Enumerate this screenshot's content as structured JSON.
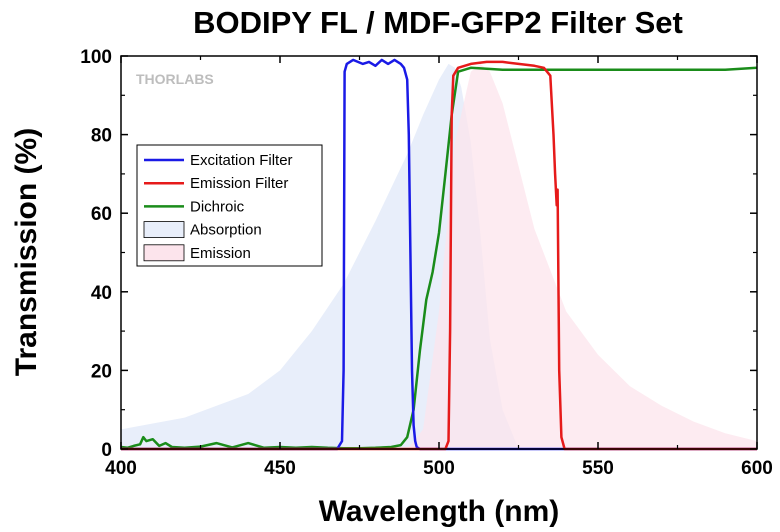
{
  "chart_data": {
    "type": "line",
    "title": "BODIPY FL / MDF-GFP2 Filter Set",
    "xlabel": "Wavelength (nm)",
    "ylabel": "Transmission (%)",
    "xlim": [
      400,
      600
    ],
    "ylim": [
      0,
      100
    ],
    "xticks": [
      "400",
      "450",
      "500",
      "550",
      "600"
    ],
    "yticks": [
      "0",
      "20",
      "40",
      "60",
      "80",
      "100"
    ],
    "watermark": "THORLABS",
    "legend_position": "upper-left",
    "series": [
      {
        "name": "Excitation Filter",
        "kind": "line",
        "color": "#1a1ae6",
        "x": [
          400,
          468,
          469.5,
          470,
          470.3,
          471,
          473,
          476,
          478,
          480,
          482,
          484,
          486,
          488,
          489,
          490,
          490.5,
          491,
          491.5,
          492,
          492.5,
          493,
          494,
          600
        ],
        "y": [
          0,
          0,
          2,
          20,
          96,
          98,
          99,
          98,
          98.5,
          97.5,
          99,
          98,
          99,
          98,
          97,
          94,
          80,
          50,
          20,
          6,
          2,
          0.5,
          0,
          0
        ]
      },
      {
        "name": "Emission Filter",
        "kind": "line",
        "color": "#e61a1a",
        "x": [
          400,
          502,
          503,
          503.5,
          504,
          504.5,
          506,
          510,
          515,
          520,
          525,
          530,
          533,
          535,
          536,
          536.5,
          537,
          537.3,
          537.8,
          538.5,
          539.5,
          600
        ],
        "y": [
          0,
          0,
          2,
          30,
          85,
          95,
          97,
          98,
          98.5,
          98.5,
          98,
          97.5,
          97,
          95,
          80,
          70,
          62,
          66,
          20,
          3,
          0,
          0
        ]
      },
      {
        "name": "Dichroic",
        "kind": "line",
        "color": "#1a8c1a",
        "x": [
          400,
          402,
          404,
          406,
          407,
          408,
          410,
          412,
          414,
          416,
          420,
          425,
          430,
          435,
          440,
          445,
          450,
          455,
          460,
          465,
          470,
          475,
          480,
          485,
          488,
          490,
          492,
          494,
          496,
          498,
          500,
          502,
          504,
          506,
          510,
          520,
          530,
          540,
          550,
          560,
          570,
          580,
          590,
          600
        ],
        "y": [
          0.5,
          0.3,
          0.8,
          1.2,
          3,
          2,
          2.5,
          0.8,
          1.5,
          0.5,
          0.3,
          0.6,
          1.5,
          0.4,
          1.5,
          0.3,
          0.5,
          0.3,
          0.5,
          0.3,
          0.2,
          0.2,
          0.3,
          0.5,
          1,
          3,
          10,
          25,
          38,
          45,
          55,
          70,
          85,
          96,
          97,
          96.5,
          96.5,
          96.5,
          96.5,
          96.5,
          96.5,
          96.5,
          96.5,
          97
        ]
      },
      {
        "name": "Absorption",
        "kind": "area",
        "color": "#e8eefa",
        "x": [
          400,
          420,
          440,
          450,
          460,
          470,
          480,
          490,
          495,
          500,
          503,
          505,
          507,
          510,
          513,
          516,
          520,
          525,
          600
        ],
        "y": [
          5,
          8,
          14,
          20,
          30,
          42,
          58,
          75,
          85,
          94,
          98,
          97,
          92,
          78,
          55,
          28,
          10,
          0,
          0
        ]
      },
      {
        "name": "Emission",
        "kind": "area",
        "color": "#fce4ec",
        "x": [
          400,
          490,
          495,
          500,
          505,
          510,
          513,
          516,
          520,
          525,
          530,
          540,
          550,
          560,
          570,
          580,
          590,
          600
        ],
        "y": [
          0,
          0,
          5,
          35,
          78,
          96,
          98,
          96,
          88,
          72,
          56,
          35,
          24,
          16,
          11,
          7,
          4,
          2
        ]
      }
    ]
  }
}
